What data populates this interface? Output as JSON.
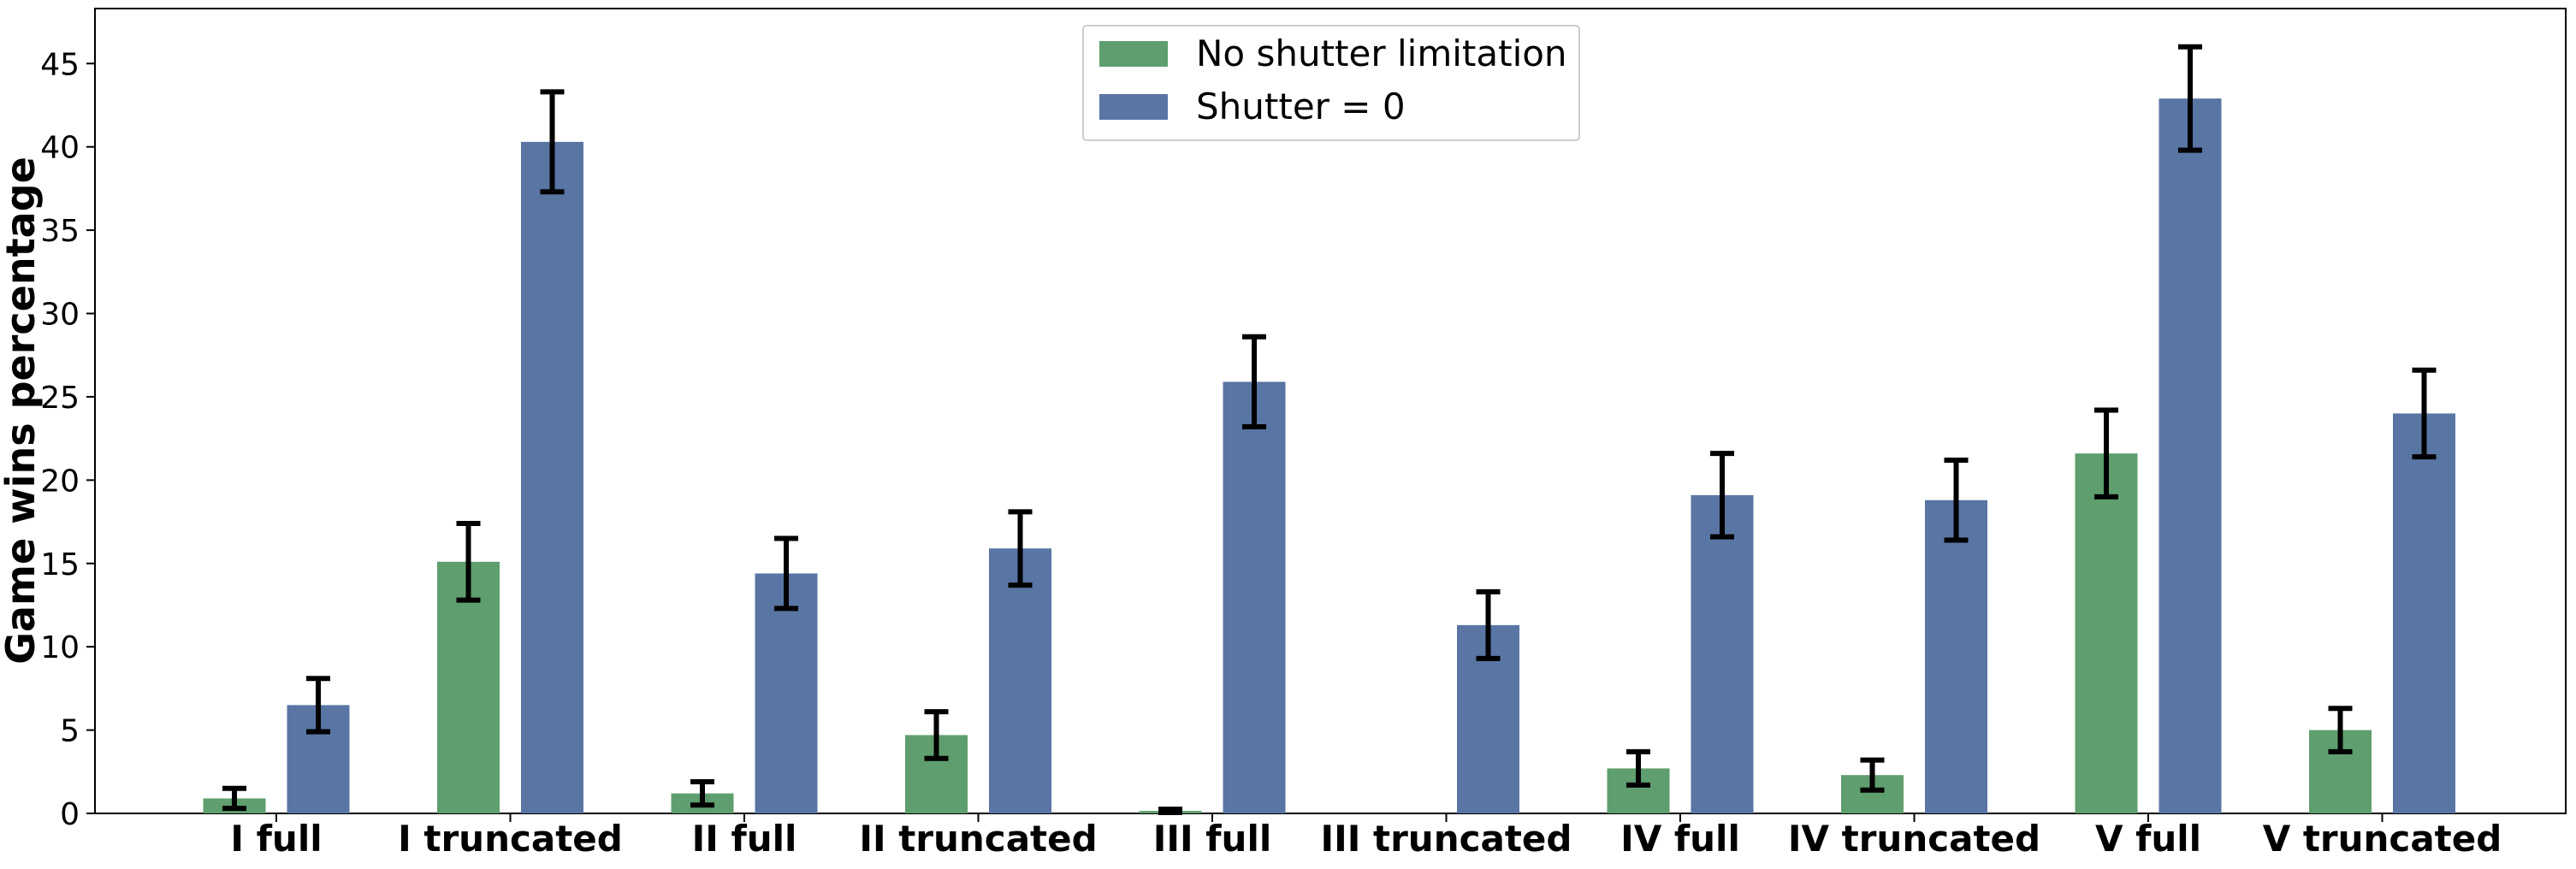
{
  "chart_data": {
    "type": "bar",
    "ylabel": "Game wins percentage",
    "xlabel": "",
    "ylim": [
      0,
      48.3
    ],
    "yticks": [
      0,
      5,
      10,
      15,
      20,
      25,
      30,
      35,
      40,
      45
    ],
    "grid": false,
    "legend_position": "top-center",
    "categories": [
      "I full",
      "I truncated",
      "II full",
      "II truncated",
      "III full",
      "III truncated",
      "IV full",
      "IV truncated",
      "V full",
      "V truncated"
    ],
    "series": [
      {
        "name": "No shutter limitation",
        "color": "#5f9e6e",
        "values": [
          0.9,
          15.1,
          1.2,
          4.7,
          0.15,
          0.0,
          2.7,
          2.3,
          21.6,
          5.0
        ],
        "error": [
          0.6,
          2.3,
          0.7,
          1.4,
          0.1,
          0.0,
          1.0,
          0.9,
          2.6,
          1.3
        ]
      },
      {
        "name": "Shutter = 0",
        "color": "#5975a4",
        "values": [
          6.5,
          40.3,
          14.4,
          15.9,
          25.9,
          11.3,
          19.1,
          18.8,
          42.9,
          24.0
        ],
        "error": [
          1.6,
          3.0,
          2.1,
          2.2,
          2.7,
          2.0,
          2.5,
          2.4,
          3.1,
          2.6
        ]
      }
    ]
  }
}
